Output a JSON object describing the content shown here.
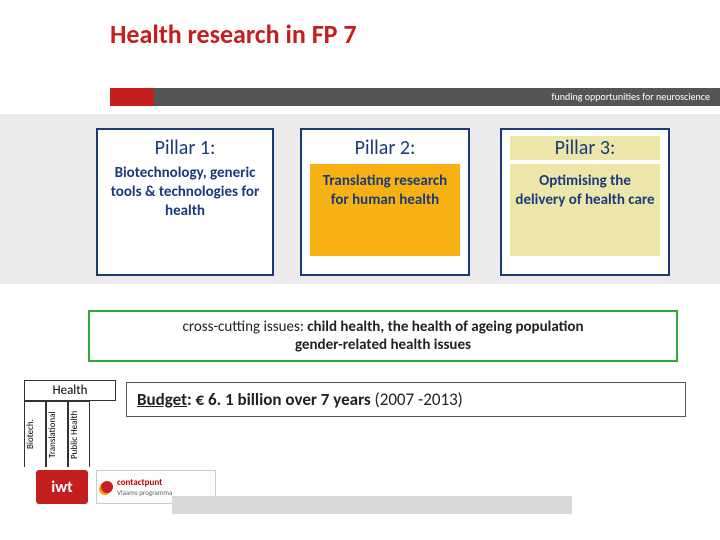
{
  "title": "Health research in FP 7",
  "title_color": "#c41e1e",
  "header_sub": "funding opportunities for neuroscience",
  "colors": {
    "accent_red": "#c41e1e",
    "navy": "#1a3a7a",
    "green_border": "#2fa83d",
    "pillar2_bg": "#f7b112",
    "pillar3_bg": "#ece7a8",
    "grey_band": "#eceaea",
    "dark_header": "#555555"
  },
  "pillars": [
    {
      "title": "Pillar 1:",
      "body": "Biotechnology, generic tools & technologies for health"
    },
    {
      "title": "Pillar 2:",
      "body": "Translating research for human health"
    },
    {
      "title": "Pillar 3:",
      "body": "Optimising the delivery of health care"
    }
  ],
  "crosscut": {
    "prefix": "cross-cutting issues:",
    "rest": " child health,  the health of ageing population",
    "line2": "gender-related health issues"
  },
  "health_box": {
    "label": "Health"
  },
  "vtabs": [
    {
      "label": "Biotech."
    },
    {
      "label": "Translational"
    },
    {
      "label": "Public Health"
    }
  ],
  "budget": {
    "label": "Budget",
    "amount": ": € 6. 1 billion over 7 years",
    "years": " (2007 -2013)"
  },
  "logos": {
    "iwt": "iwt",
    "contact_line1": "contactpunt",
    "contact_line2": "Vlaams programma"
  }
}
